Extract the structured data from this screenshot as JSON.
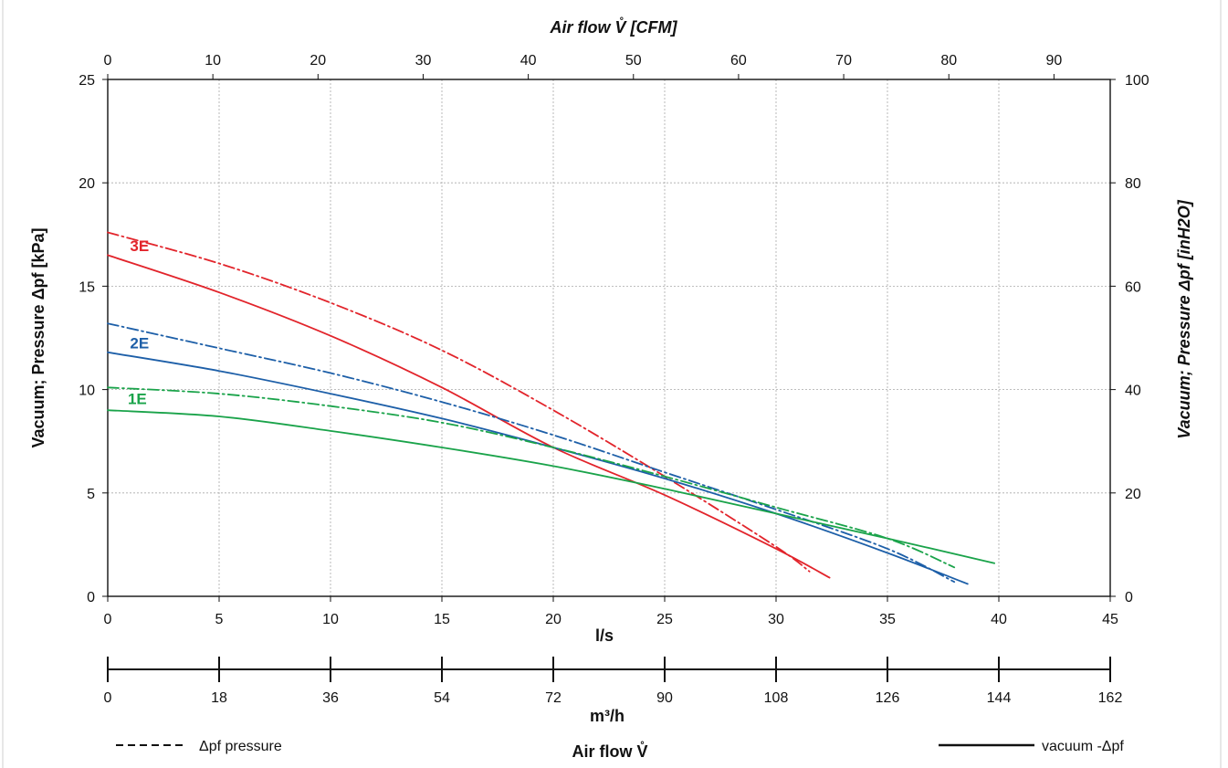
{
  "chart_data": {
    "type": "line",
    "title": "",
    "x": {
      "label": "l/s",
      "range": [
        0,
        45
      ],
      "ticks": [
        0,
        5,
        10,
        15,
        20,
        25,
        30,
        35,
        40,
        45
      ]
    },
    "x_top": {
      "label": "Air flow V̊ [CFM]",
      "range": [
        0,
        95.35
      ],
      "ticks": [
        0,
        10,
        20,
        30,
        40,
        50,
        60,
        70,
        80,
        90
      ]
    },
    "x_secondary": {
      "label": "m³/h",
      "range": [
        0,
        162
      ],
      "ticks": [
        0,
        18,
        36,
        54,
        72,
        90,
        108,
        126,
        144,
        162
      ]
    },
    "x_caption": "Air flow V̊",
    "y_left": {
      "label": "Vacuum; Pressure  Δpf [kPa]",
      "range": [
        0,
        25
      ],
      "ticks": [
        0,
        5,
        10,
        15,
        20,
        25
      ]
    },
    "y_right": {
      "label": "Vacuum; Pressure  Δpf [inH2O]",
      "range": [
        0,
        100
      ],
      "ticks": [
        0,
        20,
        40,
        60,
        80,
        100
      ]
    },
    "grid": true,
    "colors": {
      "1E": "#1aa34a",
      "2E": "#1d5fa8",
      "3E": "#e2242b"
    },
    "series": [
      {
        "name": "3E",
        "kind": "pressure",
        "x": [
          0,
          5,
          10,
          15,
          20,
          25,
          30,
          31.5
        ],
        "y": [
          17.6,
          16.1,
          14.2,
          11.9,
          9.0,
          5.8,
          2.4,
          1.2
        ]
      },
      {
        "name": "3E",
        "kind": "vacuum",
        "x": [
          0,
          5,
          10,
          15,
          20,
          25,
          30,
          32.4
        ],
        "y": [
          16.5,
          14.7,
          12.6,
          10.1,
          7.2,
          4.9,
          2.3,
          0.9
        ]
      },
      {
        "name": "2E",
        "kind": "pressure",
        "x": [
          0,
          5,
          10,
          15,
          20,
          25,
          30,
          35,
          38
        ],
        "y": [
          13.2,
          12.0,
          10.8,
          9.4,
          7.8,
          6.0,
          4.2,
          2.3,
          0.7
        ]
      },
      {
        "name": "2E",
        "kind": "vacuum",
        "x": [
          0,
          5,
          10,
          15,
          20,
          25,
          30,
          35,
          38.6
        ],
        "y": [
          11.8,
          10.9,
          9.8,
          8.6,
          7.2,
          5.7,
          4.0,
          2.1,
          0.6
        ]
      },
      {
        "name": "1E",
        "kind": "pressure",
        "x": [
          0,
          5,
          10,
          15,
          20,
          25,
          30,
          35,
          38
        ],
        "y": [
          10.1,
          9.8,
          9.2,
          8.4,
          7.2,
          5.8,
          4.3,
          2.8,
          1.4
        ]
      },
      {
        "name": "1E",
        "kind": "vacuum",
        "x": [
          0,
          5,
          10,
          15,
          20,
          25,
          30,
          35,
          39.8
        ],
        "y": [
          9.0,
          8.7,
          8.0,
          7.2,
          6.3,
          5.2,
          4.0,
          2.8,
          1.6
        ]
      }
    ],
    "series_labels": [
      {
        "text": "3E",
        "x": 1.0,
        "y": 16.7
      },
      {
        "text": "2E",
        "x": 1.0,
        "y": 12.0
      },
      {
        "text": "1E",
        "x": 0.9,
        "y": 9.3
      }
    ],
    "legend": {
      "pressure": "Δpf pressure",
      "vacuum": "vacuum -Δpf"
    }
  }
}
